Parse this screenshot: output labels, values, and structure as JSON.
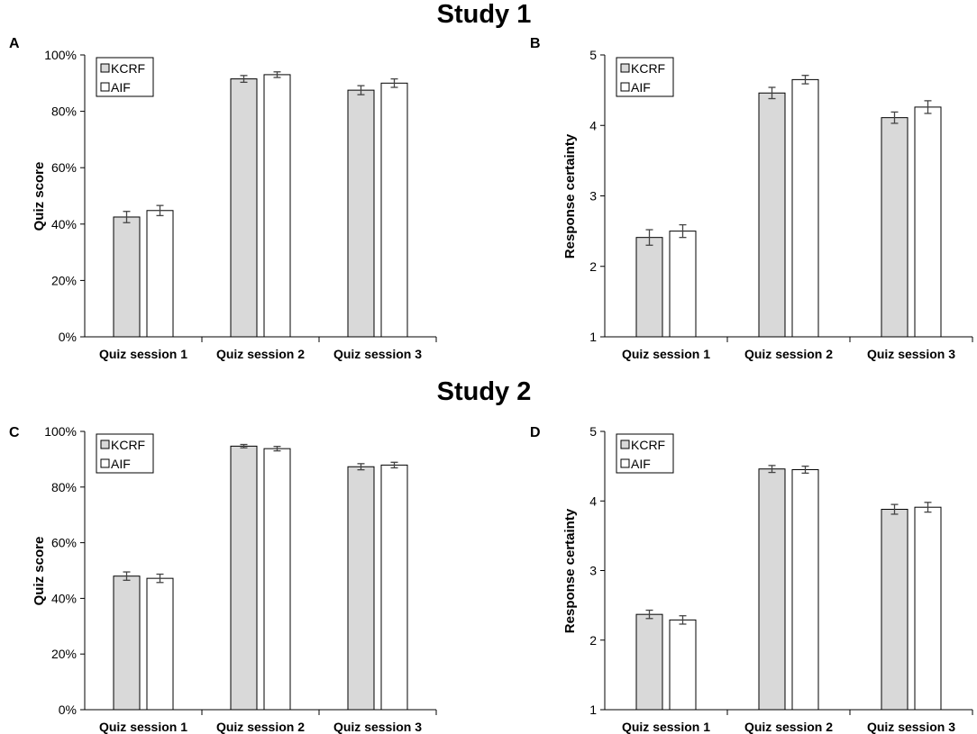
{
  "colors": {
    "kcrf": "#d9d9d9",
    "aif": "#ffffff",
    "stroke": "#000000",
    "error": "#444444"
  },
  "studies": [
    {
      "title": "Study 1"
    },
    {
      "title": "Study 2"
    }
  ],
  "chart_data": [
    {
      "panel": "A",
      "study": "Study 1",
      "type": "bar",
      "ylabel": "Quiz score",
      "ylim": [
        0,
        100
      ],
      "yticks": [
        0,
        20,
        40,
        60,
        80,
        100
      ],
      "ytick_labels": [
        "0%",
        "20%",
        "40%",
        "60%",
        "80%",
        "100%"
      ],
      "categories": [
        "Quiz session 1",
        "Quiz session 2",
        "Quiz session 3"
      ],
      "legend_position": "top-left",
      "series": [
        {
          "name": "KCRF",
          "values": [
            42.5,
            91.5,
            87.5
          ],
          "errors": [
            2.0,
            1.2,
            1.6
          ]
        },
        {
          "name": "AIF",
          "values": [
            44.8,
            93.0,
            90.0
          ],
          "errors": [
            1.8,
            1.0,
            1.5
          ]
        }
      ]
    },
    {
      "panel": "B",
      "study": "Study 1",
      "type": "bar",
      "ylabel": "Response certainty",
      "ylim": [
        1,
        5
      ],
      "yticks": [
        1,
        2,
        3,
        4,
        5
      ],
      "ytick_labels": [
        "1",
        "2",
        "3",
        "4",
        "5"
      ],
      "categories": [
        "Quiz session 1",
        "Quiz session 2",
        "Quiz session 3"
      ],
      "legend_position": "top-left",
      "series": [
        {
          "name": "KCRF",
          "values": [
            2.41,
            4.46,
            4.11
          ],
          "errors": [
            0.11,
            0.08,
            0.08
          ]
        },
        {
          "name": "AIF",
          "values": [
            2.5,
            4.65,
            4.26
          ],
          "errors": [
            0.09,
            0.06,
            0.09
          ]
        }
      ]
    },
    {
      "panel": "C",
      "study": "Study 2",
      "type": "bar",
      "ylabel": "Quiz score",
      "ylim": [
        0,
        100
      ],
      "yticks": [
        0,
        20,
        40,
        60,
        80,
        100
      ],
      "ytick_labels": [
        "0%",
        "20%",
        "40%",
        "60%",
        "80%",
        "100%"
      ],
      "categories": [
        "Quiz session 1",
        "Quiz session 2",
        "Quiz session 3"
      ],
      "legend_position": "top-left",
      "series": [
        {
          "name": "KCRF",
          "values": [
            48.0,
            94.7,
            87.3
          ],
          "errors": [
            1.5,
            0.6,
            1.1
          ]
        },
        {
          "name": "AIF",
          "values": [
            47.2,
            93.8,
            87.9
          ],
          "errors": [
            1.5,
            0.8,
            1.0
          ]
        }
      ]
    },
    {
      "panel": "D",
      "study": "Study 2",
      "type": "bar",
      "ylabel": "Response certainty",
      "ylim": [
        1,
        5
      ],
      "yticks": [
        1,
        2,
        3,
        4,
        5
      ],
      "ytick_labels": [
        "1",
        "2",
        "3",
        "4",
        "5"
      ],
      "categories": [
        "Quiz session 1",
        "Quiz session 2",
        "Quiz session 3"
      ],
      "legend_position": "top-left",
      "series": [
        {
          "name": "KCRF",
          "values": [
            2.37,
            4.46,
            3.88
          ],
          "errors": [
            0.06,
            0.05,
            0.07
          ]
        },
        {
          "name": "AIF",
          "values": [
            2.29,
            4.45,
            3.91
          ],
          "errors": [
            0.06,
            0.05,
            0.07
          ]
        }
      ]
    }
  ]
}
